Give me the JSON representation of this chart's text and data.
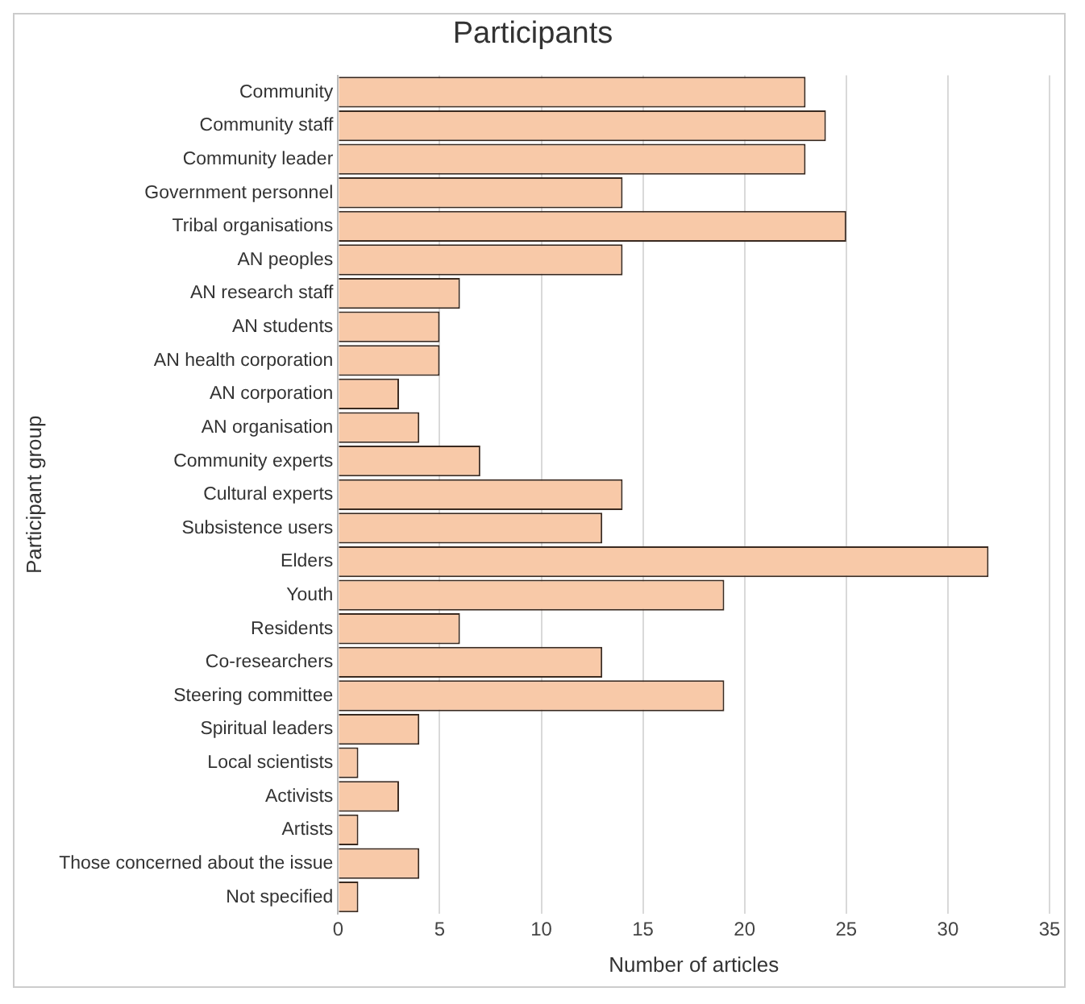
{
  "chart_data": {
    "type": "bar",
    "orientation": "horizontal",
    "title": "Participants",
    "xlabel": "Number of articles",
    "ylabel": "Participant group",
    "categories": [
      "Community",
      "Community staff",
      "Community leader",
      "Government personnel",
      "Tribal organisations",
      "AN peoples",
      "AN research staff",
      "AN students",
      "AN health corporation",
      "AN corporation",
      "AN organisation",
      "Community experts",
      "Cultural experts",
      "Subsistence users",
      "Elders",
      "Youth",
      "Residents",
      "Co-researchers",
      "Steering committee",
      "Spiritual leaders",
      "Local scientists",
      "Activists",
      "Artists",
      "Those concerned about the issue",
      "Not specified"
    ],
    "values": [
      23,
      24,
      23,
      14,
      25,
      14,
      6,
      5,
      5,
      3,
      4,
      7,
      14,
      13,
      32,
      19,
      6,
      13,
      19,
      4,
      1,
      3,
      1,
      4,
      1
    ],
    "color": "#f8c9a8",
    "xlim": [
      0,
      35
    ],
    "xticks": [
      0,
      5,
      10,
      15,
      20,
      25,
      30,
      35
    ],
    "grid": "x",
    "legend": false
  }
}
